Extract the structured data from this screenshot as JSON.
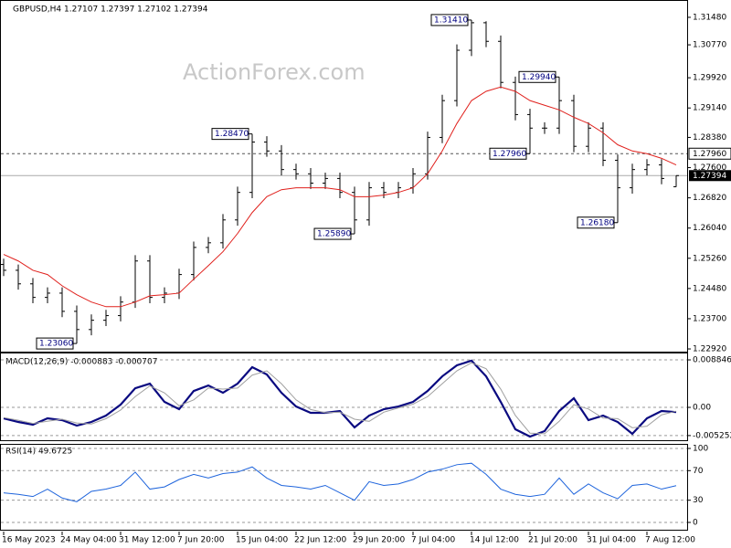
{
  "chart_data": [
    {
      "type": "ohlc",
      "title": "GBPUSD,H4 1.27107 1.27397 1.27102 1.27394",
      "watermark": "ActionForex.com",
      "color": "#000000",
      "categories": [
        "16 May 2023",
        null,
        null,
        null,
        "24 May 04:00",
        null,
        null,
        null,
        "31 May 12:00",
        null,
        null,
        null,
        "7 Jun 20:00",
        null,
        null,
        null,
        "15 Jun 04:00",
        null,
        null,
        null,
        "22 Jun 12:00",
        null,
        null,
        null,
        "29 Jun 20:00",
        null,
        null,
        null,
        "7 Jul 04:00",
        null,
        null,
        null,
        "14 Jul 12:00",
        null,
        null,
        null,
        "21 Jul 20:00",
        null,
        null,
        null,
        "31 Jul 04:00",
        null,
        null,
        null,
        "7 Aug 12:00",
        null,
        null
      ],
      "open": [
        1.251,
        1.2495,
        1.246,
        1.2425,
        1.2436,
        1.2389,
        1.2342,
        1.2366,
        1.2378,
        1.2413,
        1.2519,
        1.2425,
        1.2436,
        1.2484,
        1.2554,
        1.2566,
        1.2625,
        1.2696,
        1.2826,
        1.2803,
        1.2755,
        1.2744,
        1.272,
        1.2732,
        1.2696,
        1.2625,
        1.2708,
        1.2696,
        1.2708,
        1.2744,
        1.2838,
        1.2933,
        1.3063,
        1.3134,
        1.3086,
        1.298,
        1.2897,
        1.2862,
        1.2862,
        1.2933,
        1.2815,
        1.2862,
        1.2779,
        1.2708,
        1.2755,
        1.2767,
        1.27107
      ],
      "high": [
        1.2525,
        1.251,
        1.2475,
        1.2451,
        1.2451,
        1.2404,
        1.2381,
        1.2393,
        1.2428,
        1.2534,
        1.2534,
        1.2451,
        1.2499,
        1.2569,
        1.2581,
        1.264,
        1.2711,
        1.2847,
        1.2841,
        1.2818,
        1.277,
        1.2759,
        1.2747,
        1.2747,
        1.2711,
        1.2723,
        1.2723,
        1.2723,
        1.2759,
        1.2853,
        1.2948,
        1.3078,
        1.3141,
        1.3138,
        1.3101,
        1.2995,
        1.2912,
        1.2877,
        1.2994,
        1.2948,
        1.2877,
        1.2877,
        1.2794,
        1.277,
        1.2782,
        1.2782,
        1.27397
      ],
      "low": [
        1.248,
        1.2445,
        1.241,
        1.241,
        1.2374,
        1.2306,
        1.2327,
        1.2351,
        1.2363,
        1.2398,
        1.241,
        1.241,
        1.2421,
        1.2469,
        1.2539,
        1.2551,
        1.261,
        1.2681,
        1.2788,
        1.274,
        1.2729,
        1.2705,
        1.2705,
        1.2681,
        1.2589,
        1.261,
        1.2681,
        1.2681,
        1.2693,
        1.2729,
        1.2823,
        1.2918,
        1.3048,
        1.3071,
        1.2965,
        1.2882,
        1.2796,
        1.2847,
        1.2847,
        1.28,
        1.28,
        1.2764,
        1.2618,
        1.2693,
        1.274,
        1.2717,
        1.27102
      ],
      "close": [
        1.2495,
        1.246,
        1.2425,
        1.2436,
        1.2389,
        1.2342,
        1.2366,
        1.2378,
        1.2413,
        1.2519,
        1.2425,
        1.2436,
        1.2484,
        1.2554,
        1.2566,
        1.2625,
        1.2696,
        1.2826,
        1.2803,
        1.2755,
        1.2744,
        1.272,
        1.2732,
        1.2696,
        1.2625,
        1.2708,
        1.2696,
        1.2708,
        1.2744,
        1.2838,
        1.2933,
        1.3063,
        1.3134,
        1.3086,
        1.298,
        1.2897,
        1.2862,
        1.2862,
        1.2933,
        1.2815,
        1.2862,
        1.2779,
        1.2708,
        1.2755,
        1.2767,
        1.2732,
        1.27394
      ],
      "ma": {
        "color": "#e0201c",
        "values": [
          1.2536,
          1.2519,
          1.2495,
          1.2484,
          1.2455,
          1.2432,
          1.2413,
          1.2401,
          1.2401,
          1.2413,
          1.2429,
          1.2432,
          1.2436,
          1.2472,
          1.2507,
          1.2543,
          1.259,
          1.2644,
          1.2685,
          1.2703,
          1.2708,
          1.2708,
          1.2708,
          1.2703,
          1.2685,
          1.2685,
          1.2689,
          1.2696,
          1.2708,
          1.2744,
          1.2803,
          1.2874,
          1.2933,
          1.2957,
          1.2968,
          1.2957,
          1.2933,
          1.2921,
          1.2909,
          1.289,
          1.2874,
          1.285,
          1.2819,
          1.2803,
          1.2796,
          1.2784,
          1.2767
        ]
      },
      "ylim": [
        1.2285,
        1.3188
      ],
      "yticks": [
        {
          "value": 1.3148,
          "label": "1.31480"
        },
        {
          "value": 1.3077,
          "label": "1.30770"
        },
        {
          "value": 1.2992,
          "label": "1.29920"
        },
        {
          "value": 1.2914,
          "label": "1.29140"
        },
        {
          "value": 1.2838,
          "label": "1.28380"
        },
        {
          "value": 1.276,
          "label": "1.27600"
        },
        {
          "value": 1.2682,
          "label": "1.26820"
        },
        {
          "value": 1.2604,
          "label": "1.26040"
        },
        {
          "value": 1.2526,
          "label": "1.25260"
        },
        {
          "value": 1.2448,
          "label": "1.24480"
        },
        {
          "value": 1.237,
          "label": "1.23700"
        },
        {
          "value": 1.2292,
          "label": "1.22920"
        }
      ],
      "levels": [
        {
          "value": 1.2796,
          "label": "1.27960"
        }
      ],
      "last_price": {
        "value": 1.27394,
        "label": "1.27394"
      },
      "annotations": [
        {
          "value": 1.3141,
          "label": "1.31410"
        },
        {
          "value": 1.2847,
          "label": "1.28470"
        },
        {
          "value": 1.2589,
          "label": "1.25890"
        },
        {
          "value": 1.2306,
          "label": "1.23060"
        },
        {
          "value": 1.2994,
          "label": "1.29940"
        },
        {
          "value": 1.2796,
          "label": "1.27960"
        },
        {
          "value": 1.2618,
          "label": "1.26180"
        }
      ]
    },
    {
      "type": "line",
      "title": "MACD(12,26,9) -0.000883 -0.000707",
      "series": [
        {
          "color": "#0a0a80",
          "width": 2.2,
          "values": [
            -0.00204,
            -0.00272,
            -0.00323,
            -0.00204,
            -0.00238,
            -0.0034,
            -0.00272,
            -0.00153,
            0.00051,
            0.00357,
            0.00442,
            0.00102,
            -0.00034,
            0.00306,
            0.00408,
            0.00272,
            0.00442,
            0.00749,
            0.00612,
            0.00272,
            0.00017,
            -0.00102,
            -0.00102,
            -0.00068,
            -0.00374,
            -0.00153,
            -0.00034,
            0.00017,
            0.00102,
            0.00306,
            0.00578,
            0.00783,
            0.0087,
            0.00578,
            0.00102,
            -0.00408,
            -0.00544,
            -0.00442,
            -0.00068,
            0.0017,
            -0.00238,
            -0.00153,
            -0.00272,
            -0.00493,
            -0.00204,
            -0.00068,
            -0.000883
          ]
        },
        {
          "color": "#a0a0a0",
          "width": 1,
          "values": [
            -0.0019,
            -0.0024,
            -0.003,
            -0.0026,
            -0.0022,
            -0.0029,
            -0.0031,
            -0.0021,
            -0.0005,
            0.002,
            0.004,
            0.0027,
            0.0003,
            0.0014,
            0.0036,
            0.0034,
            0.0036,
            0.006,
            0.0068,
            0.0044,
            0.0014,
            -0.0004,
            -0.001,
            -0.0009,
            -0.0022,
            -0.0026,
            -0.0009,
            -0.0001,
            0.0006,
            0.002,
            0.0044,
            0.0068,
            0.0083,
            0.0072,
            0.0034,
            -0.0015,
            -0.0048,
            -0.0049,
            -0.0026,
            0.0005,
            -0.0003,
            -0.002,
            -0.0021,
            -0.0038,
            -0.0035,
            -0.0014,
            -0.000707
          ]
        }
      ],
      "ylim": [
        -0.00612,
        0.00987
      ],
      "yticks": [
        0.008846,
        {
          "value": 0,
          "label": "0.00"
        },
        -0.005252
      ]
    },
    {
      "type": "line",
      "title": "RSI(14) 49.6725",
      "series": [
        {
          "color": "#1e64dc",
          "width": 1,
          "values": [
            40,
            38,
            35,
            45,
            33,
            28,
            42,
            45,
            50,
            68,
            45,
            48,
            58,
            65,
            60,
            66,
            68,
            75,
            60,
            50,
            48,
            45,
            50,
            40,
            30,
            55,
            50,
            52,
            58,
            68,
            72,
            78,
            80,
            65,
            45,
            38,
            35,
            38,
            60,
            38,
            52,
            40,
            32,
            50,
            52,
            45,
            49.6725
          ]
        }
      ],
      "ylim": [
        -9.9,
        103.7
      ],
      "yticks": [
        0,
        30,
        70,
        100
      ]
    }
  ]
}
